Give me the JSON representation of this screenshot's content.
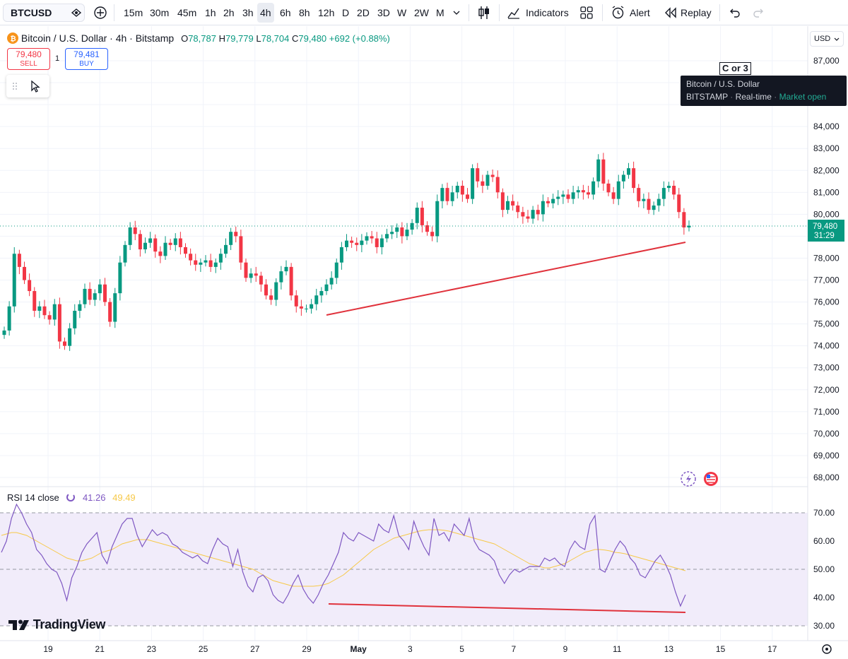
{
  "toolbar": {
    "symbol": "BTCUSD",
    "timeframes": [
      "15m",
      "30m",
      "45m",
      "1h",
      "2h",
      "3h",
      "4h",
      "6h",
      "8h",
      "12h",
      "D",
      "2D",
      "3D",
      "W",
      "2W",
      "M"
    ],
    "active_timeframe": "4h",
    "indicators_label": "Indicators",
    "alert_label": "Alert",
    "replay_label": "Replay"
  },
  "legend": {
    "title": "Bitcoin / U.S. Dollar · 4h · Bitstamp",
    "open_label": "O",
    "open": "78,787",
    "high_label": "H",
    "high": "79,779",
    "low_label": "L",
    "low": "78,704",
    "close_label": "C",
    "close": "79,480",
    "change": "+692 (+0.88%)"
  },
  "trade": {
    "sell_price": "79,480",
    "sell_label": "SELL",
    "buy_price": "79,481",
    "buy_label": "BUY",
    "spread": "1"
  },
  "tooltip": {
    "line1": "Bitcoin / U.S. Dollar",
    "exchange": "BITSTAMP",
    "feed": "Real-time",
    "status": "Market open"
  },
  "annotation_label": "C or 3",
  "currency": "USD",
  "last_price_label": {
    "price": "79,480",
    "countdown": "31:29"
  },
  "rsi_legend": {
    "name": "RSI 14 close",
    "rsi_value": "41.26",
    "ma_value": "49.49"
  },
  "brand": "TradingView",
  "colors": {
    "up": "#089981",
    "down": "#f23645",
    "rsi_line": "#7e57c2",
    "rsi_ma": "#f7c948",
    "trendline": "#e0323c",
    "band_fill": "#f1ecfa"
  },
  "chart_data": [
    {
      "type": "candlestick",
      "title": "Bitcoin / U.S. Dollar · 4h · Bitstamp",
      "ylim": [
        67600,
        87800
      ],
      "y_ticks": [
        68000,
        69000,
        70000,
        71000,
        72000,
        73000,
        74000,
        75000,
        76000,
        77000,
        78000,
        79000,
        80000,
        81000,
        82000,
        83000,
        84000,
        85000,
        86000,
        87000
      ],
      "y_tick_labels": [
        "68,000",
        "69,000",
        "70,000",
        "71,000",
        "72,000",
        "73,000",
        "74,000",
        "75,000",
        "76,000",
        "77,000",
        "78,000",
        "79,000",
        "80,000",
        "81,000",
        "82,000",
        "83,000",
        "84,000",
        "85,000",
        "86,000",
        "87,000"
      ],
      "x_tick_labels": [
        "19",
        "21",
        "23",
        "25",
        "27",
        "29",
        "May",
        "3",
        "5",
        "7",
        "9",
        "11",
        "13",
        "15",
        "17"
      ],
      "x_ticks": [
        1.0,
        3.0,
        5.0,
        7.0,
        9.0,
        11.0,
        13.0,
        15.0,
        17.0,
        19.0,
        21.0,
        23.0,
        25.0,
        27.0,
        29.0
      ],
      "xlim": [
        -0.5,
        31.5
      ],
      "last_price": 79480,
      "closes": [
        74700,
        75800,
        78200,
        77600,
        77000,
        76500,
        75600,
        75800,
        75400,
        75200,
        75900,
        74200,
        74000,
        74800,
        75600,
        75900,
        76600,
        76100,
        76400,
        76800,
        76000,
        75100,
        76400,
        77800,
        78600,
        79400,
        79100,
        78400,
        78700,
        78900,
        78300,
        78100,
        78700,
        78600,
        78900,
        78500,
        78200,
        77900,
        77700,
        77800,
        77900,
        77600,
        77800,
        78200,
        78600,
        79200,
        79000,
        77800,
        77100,
        77300,
        77200,
        76800,
        76300,
        76100,
        76900,
        77400,
        77600,
        76300,
        75800,
        75700,
        75700,
        75900,
        76300,
        76500,
        76800,
        77100,
        77800,
        78500,
        78800,
        78700,
        78600,
        78800,
        79000,
        78900,
        78500,
        78900,
        79100,
        79200,
        79400,
        79000,
        79300,
        79600,
        80300,
        79500,
        79200,
        79000,
        80600,
        81200,
        80600,
        81000,
        81300,
        80900,
        80700,
        82100,
        81500,
        81300,
        81800,
        81700,
        81000,
        80200,
        80600,
        80400,
        80100,
        79900,
        79800,
        80200,
        80000,
        80600,
        80500,
        80700,
        80800,
        80900,
        80700,
        81000,
        81100,
        81000,
        80900,
        81500,
        82500,
        81400,
        81000,
        80700,
        81500,
        81800,
        82100,
        81200,
        80600,
        80700,
        80200,
        80400,
        80700,
        81200,
        81300,
        80900,
        80100,
        79400,
        79480
      ]
    },
    {
      "type": "line",
      "title": "RSI 14 close",
      "ylim": [
        27.5,
        72.8
      ],
      "y_ticks": [
        30,
        40,
        50,
        60,
        70
      ],
      "y_tick_labels": [
        "30.00",
        "40.00",
        "50.00",
        "60.00",
        "70.00"
      ],
      "band": [
        30,
        70
      ],
      "midline": 50,
      "series": [
        {
          "name": "RSI",
          "values": [
            56,
            60,
            68,
            73,
            70,
            66,
            63,
            57,
            55,
            52,
            50,
            49,
            45,
            39,
            47,
            51,
            56,
            59,
            61,
            63,
            55,
            52,
            58,
            62,
            66,
            68,
            68,
            62,
            58,
            61,
            64,
            62,
            63,
            62,
            59,
            58,
            56,
            55,
            54,
            55,
            53,
            52,
            57,
            61,
            59,
            58,
            51,
            57,
            49,
            44,
            42,
            47,
            48,
            46,
            41,
            39,
            38,
            41,
            45,
            48,
            43,
            40,
            38,
            41,
            45,
            48,
            52,
            56,
            63,
            61,
            60,
            63,
            62,
            61,
            60,
            66,
            64,
            63,
            69,
            62,
            60,
            57,
            67,
            62,
            58,
            55,
            68,
            62,
            63,
            60,
            66,
            64,
            62,
            68,
            60,
            57,
            56,
            55,
            53,
            48,
            45,
            48,
            50,
            49,
            50,
            51,
            51,
            51,
            54,
            53,
            54,
            52,
            51,
            57,
            60,
            58,
            57,
            66,
            69,
            50,
            49,
            53,
            57,
            60,
            58,
            54,
            52,
            48,
            47,
            50,
            53,
            55,
            52,
            48,
            42,
            37,
            41
          ]
        },
        {
          "name": "RSI-based MA",
          "values": [
            62,
            62.5,
            63,
            63,
            62.5,
            62,
            61,
            60,
            59,
            58,
            57,
            56,
            55,
            54,
            53.5,
            53,
            53,
            53.5,
            54,
            55,
            56,
            56.5,
            57,
            58,
            59,
            59.5,
            60,
            60.5,
            60.5,
            60.5,
            60,
            59.5,
            59,
            58.5,
            58,
            57.5,
            57,
            56.5,
            56,
            55.5,
            55,
            54.5,
            54,
            53.5,
            53,
            52.5,
            52,
            51.5,
            51,
            50.5,
            50,
            49,
            48,
            47,
            46,
            45.5,
            45,
            44.5,
            44,
            44,
            44,
            44,
            44,
            44.2,
            44.5,
            45,
            46,
            47,
            48,
            49.5,
            51,
            52.5,
            54,
            55.5,
            57,
            58,
            59,
            60,
            61,
            61.5,
            62,
            62.5,
            63,
            63.5,
            63.8,
            64,
            64,
            64,
            63.8,
            63.5,
            63,
            62.5,
            62,
            61.5,
            61,
            60.5,
            60,
            59.5,
            59,
            58,
            57,
            56,
            55,
            54,
            53,
            52,
            51.5,
            51,
            50.5,
            50.5,
            51,
            51.5,
            52,
            53,
            54,
            55,
            56,
            56.5,
            57,
            57,
            56.8,
            56.5,
            56,
            55.8,
            55.5,
            55,
            54.5,
            54,
            53.5,
            53,
            52.5,
            52,
            51.5,
            51,
            50.5,
            50,
            49.49
          ]
        }
      ]
    }
  ]
}
